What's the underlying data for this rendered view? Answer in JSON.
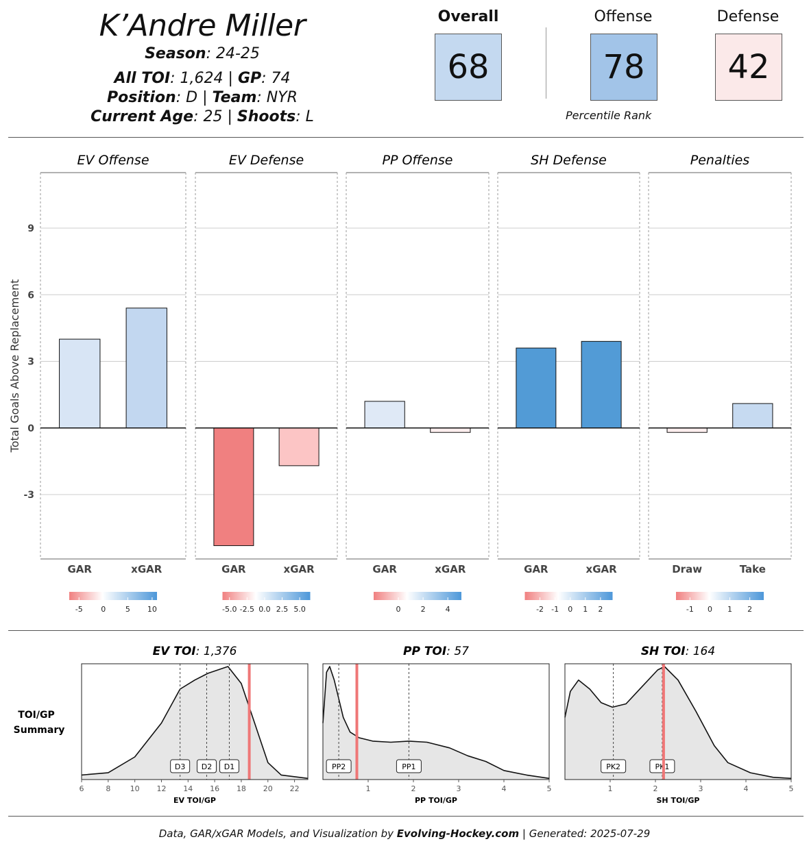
{
  "header": {
    "player_name": "K’Andre Miller",
    "season_label": "Season",
    "season_value": "24-25",
    "toi_label": "All TOI",
    "toi_value": "1,624",
    "gp_label": "GP",
    "gp_value": "74",
    "position_label": "Position",
    "position_value": "D",
    "team_label": "Team",
    "team_value": "NYR",
    "age_label": "Current Age",
    "age_value": "25",
    "shoots_label": "Shoots",
    "shoots_value": "L"
  },
  "scores": {
    "overall_label": "Overall",
    "overall_value": "68",
    "overall_color": "#c4d9f0",
    "offense_label": "Offense",
    "offense_value": "78",
    "offense_color": "#a2c4e8",
    "defense_label": "Defense",
    "defense_value": "42",
    "defense_color": "#fbe9e9",
    "percentile_label": "Percentile Rank"
  },
  "chart_data": [
    {
      "type": "bar",
      "title": "Total Goals Above Replacement by component",
      "ylabel": "Total Goals Above Replacement",
      "ylim": [
        -5.9,
        11.5
      ],
      "yticks": [
        -3,
        0,
        3,
        6,
        9
      ],
      "panels": [
        {
          "title": "EV Offense",
          "categories": [
            "GAR",
            "xGAR"
          ],
          "values": [
            4.0,
            5.4
          ],
          "colors": [
            "#d8e5f5",
            "#c2d7f0"
          ],
          "legend_ticks": [
            "-5",
            "0",
            "5",
            "10"
          ],
          "legend_range": [
            -7,
            11
          ]
        },
        {
          "title": "EV Defense",
          "categories": [
            "GAR",
            "xGAR"
          ],
          "values": [
            -5.3,
            -1.7
          ],
          "colors": [
            "#f08080",
            "#fcc5c5"
          ],
          "legend_ticks": [
            "-5.0",
            "-2.5",
            "0.0",
            "2.5",
            "5.0"
          ],
          "legend_range": [
            -6,
            6.5
          ]
        },
        {
          "title": "PP Offense",
          "categories": [
            "GAR",
            "xGAR"
          ],
          "values": [
            1.2,
            -0.2
          ],
          "colors": [
            "#dfe9f6",
            "#fdeeee"
          ],
          "legend_ticks": [
            "0",
            "2",
            "4"
          ],
          "legend_range": [
            -2,
            5.1
          ]
        },
        {
          "title": "SH Defense",
          "categories": [
            "GAR",
            "xGAR"
          ],
          "values": [
            3.6,
            3.9
          ],
          "colors": [
            "#529bd6",
            "#529bd6"
          ],
          "legend_ticks": [
            "-2",
            "-1",
            "0",
            "1",
            "2"
          ],
          "legend_range": [
            -3,
            2.8
          ]
        },
        {
          "title": "Penalties",
          "categories": [
            "Draw",
            "Take"
          ],
          "values": [
            -0.2,
            1.1
          ],
          "colors": [
            "#fdeeee",
            "#c6daf1"
          ],
          "legend_ticks": [
            "-1",
            "0",
            "1",
            "2"
          ],
          "legend_range": [
            -1.7,
            2.7
          ]
        }
      ]
    },
    {
      "type": "area",
      "title": "TOI/GP Summary",
      "row_label": "TOI/GP Summary",
      "panels": [
        {
          "title_bold": "EV TOI",
          "title_value": "1,376",
          "xlabel": "EV TOI/GP",
          "xlim": [
            6,
            23
          ],
          "xticks": [
            6,
            8,
            10,
            12,
            14,
            16,
            18,
            20,
            22
          ],
          "player_value": 18.6,
          "markers": [
            {
              "label": "D3",
              "x": 13.4
            },
            {
              "label": "D2",
              "x": 15.4
            },
            {
              "label": "D1",
              "x": 17.1
            }
          ],
          "density": [
            [
              6,
              0.04
            ],
            [
              8,
              0.06
            ],
            [
              10,
              0.2
            ],
            [
              12,
              0.5
            ],
            [
              13.4,
              0.8
            ],
            [
              14.5,
              0.88
            ],
            [
              15.5,
              0.94
            ],
            [
              17,
              1.0
            ],
            [
              18,
              0.85
            ],
            [
              19,
              0.5
            ],
            [
              20,
              0.15
            ],
            [
              21,
              0.04
            ],
            [
              23,
              0.01
            ]
          ]
        },
        {
          "title_bold": "PP TOI",
          "title_value": "57",
          "xlabel": "PP TOI/GP",
          "xlim": [
            0,
            5
          ],
          "xticks": [
            1,
            2,
            3,
            4,
            5
          ],
          "player_value": 0.75,
          "markers": [
            {
              "label": "PP2",
              "x": 0.35
            },
            {
              "label": "PP1",
              "x": 1.9
            }
          ],
          "density": [
            [
              0,
              0.5
            ],
            [
              0.08,
              0.95
            ],
            [
              0.15,
              1.0
            ],
            [
              0.25,
              0.88
            ],
            [
              0.45,
              0.55
            ],
            [
              0.6,
              0.42
            ],
            [
              0.8,
              0.37
            ],
            [
              1.1,
              0.34
            ],
            [
              1.5,
              0.33
            ],
            [
              1.9,
              0.34
            ],
            [
              2.3,
              0.33
            ],
            [
              2.8,
              0.28
            ],
            [
              3.2,
              0.21
            ],
            [
              3.6,
              0.16
            ],
            [
              4.0,
              0.08
            ],
            [
              4.5,
              0.04
            ],
            [
              5,
              0.01
            ]
          ]
        },
        {
          "title_bold": "SH TOI",
          "title_value": "164",
          "xlabel": "SH TOI/GP",
          "xlim": [
            0,
            5
          ],
          "xticks": [
            1,
            2,
            3,
            4,
            5
          ],
          "player_value": 2.18,
          "markers": [
            {
              "label": "PK2",
              "x": 1.07
            },
            {
              "label": "PK1",
              "x": 2.15
            }
          ],
          "density": [
            [
              0,
              0.55
            ],
            [
              0.12,
              0.78
            ],
            [
              0.3,
              0.88
            ],
            [
              0.55,
              0.8
            ],
            [
              0.8,
              0.68
            ],
            [
              1.05,
              0.64
            ],
            [
              1.35,
              0.67
            ],
            [
              1.7,
              0.82
            ],
            [
              2.05,
              0.97
            ],
            [
              2.2,
              1.0
            ],
            [
              2.5,
              0.88
            ],
            [
              2.9,
              0.6
            ],
            [
              3.3,
              0.3
            ],
            [
              3.6,
              0.15
            ],
            [
              4.1,
              0.06
            ],
            [
              4.6,
              0.02
            ],
            [
              5,
              0.01
            ]
          ]
        }
      ]
    }
  ],
  "footer": {
    "prefix": "Data, GAR/xGAR Models, and Visualization by ",
    "brand": "Evolving-Hockey.com",
    "suffix": " | Generated: 2025-07-29"
  }
}
